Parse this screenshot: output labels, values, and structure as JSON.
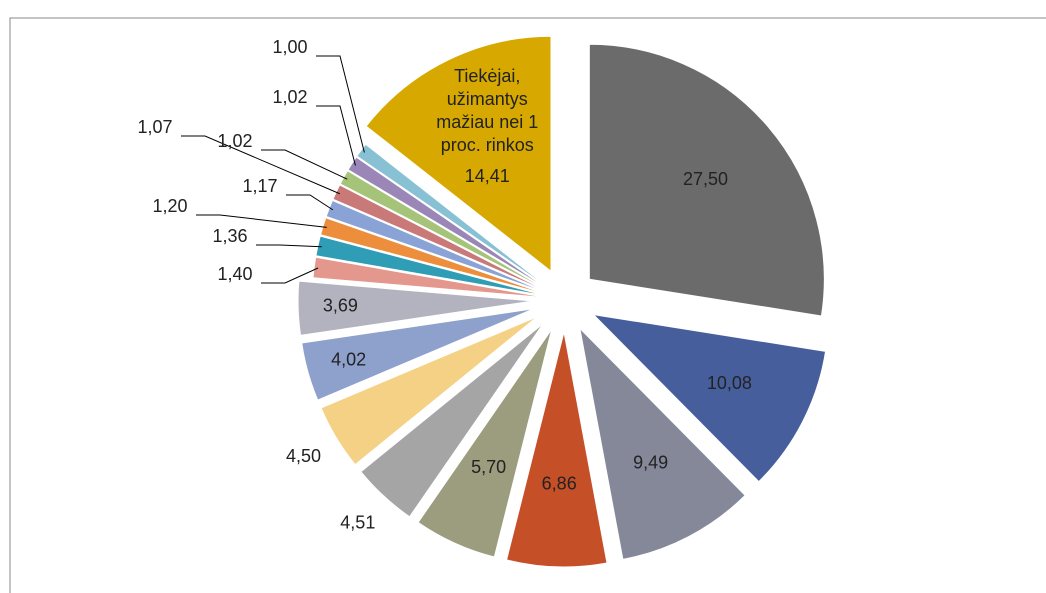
{
  "chart_data": {
    "type": "pie",
    "categories": [
      null,
      null,
      null,
      null,
      null,
      null,
      null,
      null,
      null,
      null,
      null,
      null,
      null,
      null,
      null,
      null,
      null,
      "Tiekėjai, užimantys mažiau nei 1 proc. rinkos"
    ],
    "values": [
      27.5,
      10.08,
      9.49,
      6.86,
      5.7,
      4.51,
      4.5,
      4.02,
      3.69,
      1.4,
      1.36,
      1.2,
      1.17,
      1.07,
      1.02,
      1.02,
      1.0,
      14.41
    ],
    "value_labels": [
      "27,50",
      "10,08",
      "9,49",
      "6,86",
      "5,70",
      "4,51",
      "4,50",
      "4,02",
      "3,69",
      "1,40",
      "1,36",
      "1,20",
      "1,17",
      "1,07",
      "1,02",
      "1,02",
      "1,00",
      "14,41"
    ],
    "colors": [
      "#6b6b6b",
      "#465f9c",
      "#858899",
      "#c54f27",
      "#9c9c7e",
      "#a5a5a5",
      "#f5d185",
      "#8ea0cc",
      "#b3b3c0",
      "#e4978c",
      "#2e9db5",
      "#ed8e3d",
      "#8aa3d6",
      "#c97a78",
      "#a5c47a",
      "#9a87b8",
      "#88c0d4",
      "#d6a800"
    ]
  }
}
